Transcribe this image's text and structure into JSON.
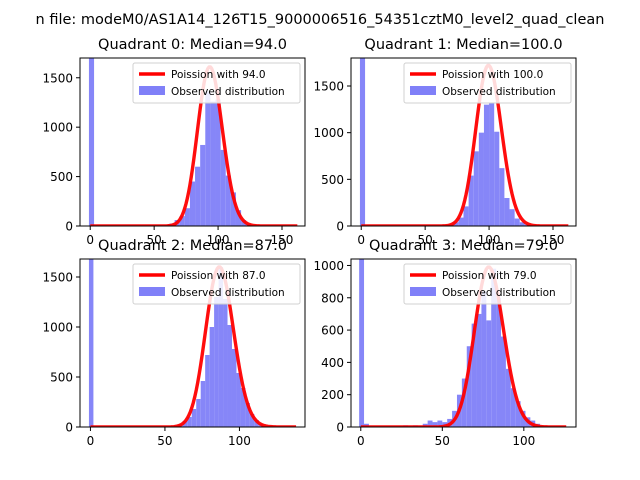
{
  "suptitle": "n file: modeM0/AS1A14_126T15_9000006516_54351cztM0_level2_quad_clean",
  "colors": {
    "poisson": "#ff0000",
    "observed": "#8080f8"
  },
  "chart_data": [
    {
      "type": "bar",
      "title": "Quadrant 0: Median=94.0",
      "median": 94.0,
      "xlim": [
        -8,
        168
      ],
      "ylim": [
        0,
        1700
      ],
      "xticks": [
        0,
        50,
        100,
        150
      ],
      "yticks": [
        0,
        500,
        1000,
        1500
      ],
      "x_tick_labels_visible": true,
      "legend": [
        "Poission with 94.0",
        "Observed distribution"
      ],
      "poisson_label": "Poission with 94.0",
      "observed_label": "Observed distribution",
      "poisson_peak": 1610,
      "bins": [
        {
          "x0": -1,
          "x1": 3,
          "count": 1700
        },
        {
          "x0": 50,
          "x1": 54,
          "count": 5
        },
        {
          "x0": 54,
          "x1": 58,
          "count": 5
        },
        {
          "x0": 58,
          "x1": 62,
          "count": 10
        },
        {
          "x0": 62,
          "x1": 66,
          "count": 25
        },
        {
          "x0": 66,
          "x1": 70,
          "count": 60
        },
        {
          "x0": 70,
          "x1": 74,
          "count": 100
        },
        {
          "x0": 74,
          "x1": 78,
          "count": 180
        },
        {
          "x0": 78,
          "x1": 82,
          "count": 450
        },
        {
          "x0": 82,
          "x1": 86,
          "count": 600
        },
        {
          "x0": 86,
          "x1": 90,
          "count": 820
        },
        {
          "x0": 90,
          "x1": 94,
          "count": 1360
        },
        {
          "x0": 94,
          "x1": 98,
          "count": 1260
        },
        {
          "x0": 98,
          "x1": 102,
          "count": 1280
        },
        {
          "x0": 102,
          "x1": 106,
          "count": 770
        },
        {
          "x0": 106,
          "x1": 110,
          "count": 510
        },
        {
          "x0": 110,
          "x1": 114,
          "count": 340
        },
        {
          "x0": 114,
          "x1": 118,
          "count": 160
        },
        {
          "x0": 118,
          "x1": 122,
          "count": 60
        },
        {
          "x0": 122,
          "x1": 126,
          "count": 20
        },
        {
          "x0": 126,
          "x1": 130,
          "count": 5
        }
      ]
    },
    {
      "type": "bar",
      "title": "Quadrant 1: Median=100.0",
      "median": 100.0,
      "xlim": [
        -8,
        168
      ],
      "ylim": [
        0,
        1800
      ],
      "xticks": [
        0,
        50,
        100,
        150
      ],
      "yticks": [
        0,
        500,
        1000,
        1500
      ],
      "x_tick_labels_visible": true,
      "legend": [
        "Poission with 100.0",
        "Observed distribution"
      ],
      "poisson_label": "Poission with 100.0",
      "observed_label": "Observed distribution",
      "poisson_peak": 1720,
      "bins": [
        {
          "x0": -1,
          "x1": 3,
          "count": 1800
        },
        {
          "x0": 60,
          "x1": 64,
          "count": 5
        },
        {
          "x0": 64,
          "x1": 68,
          "count": 10
        },
        {
          "x0": 68,
          "x1": 72,
          "count": 20
        },
        {
          "x0": 72,
          "x1": 76,
          "count": 40
        },
        {
          "x0": 76,
          "x1": 80,
          "count": 90
        },
        {
          "x0": 80,
          "x1": 84,
          "count": 210
        },
        {
          "x0": 84,
          "x1": 88,
          "count": 540
        },
        {
          "x0": 88,
          "x1": 92,
          "count": 800
        },
        {
          "x0": 92,
          "x1": 96,
          "count": 1000
        },
        {
          "x0": 96,
          "x1": 100,
          "count": 1300
        },
        {
          "x0": 100,
          "x1": 104,
          "count": 1320
        },
        {
          "x0": 104,
          "x1": 108,
          "count": 1010
        },
        {
          "x0": 108,
          "x1": 112,
          "count": 620
        },
        {
          "x0": 112,
          "x1": 116,
          "count": 300
        },
        {
          "x0": 116,
          "x1": 120,
          "count": 180
        },
        {
          "x0": 120,
          "x1": 124,
          "count": 80
        },
        {
          "x0": 124,
          "x1": 128,
          "count": 40
        },
        {
          "x0": 128,
          "x1": 132,
          "count": 15
        }
      ]
    },
    {
      "type": "bar",
      "title": "Quadrant 2: Median=87.0",
      "median": 87.0,
      "xlim": [
        -7,
        144
      ],
      "ylim": [
        0,
        1680
      ],
      "xticks": [
        0,
        50,
        100
      ],
      "yticks": [
        0,
        500,
        1000,
        1500
      ],
      "x_tick_labels_visible": true,
      "legend": [
        "Poission with 87.0",
        "Observed distribution"
      ],
      "poisson_label": "Poission with 87.0",
      "observed_label": "Observed distribution",
      "poisson_peak": 1600,
      "bins": [
        {
          "x0": -1,
          "x1": 2,
          "count": 1680
        },
        {
          "x0": 56,
          "x1": 59,
          "count": 15
        },
        {
          "x0": 59,
          "x1": 62,
          "count": 30
        },
        {
          "x0": 62,
          "x1": 65,
          "count": 60
        },
        {
          "x0": 65,
          "x1": 68,
          "count": 100
        },
        {
          "x0": 68,
          "x1": 71,
          "count": 180
        },
        {
          "x0": 71,
          "x1": 74,
          "count": 280
        },
        {
          "x0": 74,
          "x1": 77,
          "count": 460
        },
        {
          "x0": 77,
          "x1": 80,
          "count": 720
        },
        {
          "x0": 80,
          "x1": 83,
          "count": 1000
        },
        {
          "x0": 83,
          "x1": 86,
          "count": 1300
        },
        {
          "x0": 86,
          "x1": 89,
          "count": 1600
        },
        {
          "x0": 89,
          "x1": 92,
          "count": 1280
        },
        {
          "x0": 92,
          "x1": 95,
          "count": 1020
        },
        {
          "x0": 95,
          "x1": 98,
          "count": 780
        },
        {
          "x0": 98,
          "x1": 101,
          "count": 540
        },
        {
          "x0": 101,
          "x1": 104,
          "count": 390
        },
        {
          "x0": 104,
          "x1": 107,
          "count": 240
        },
        {
          "x0": 107,
          "x1": 110,
          "count": 130
        },
        {
          "x0": 110,
          "x1": 113,
          "count": 70
        },
        {
          "x0": 113,
          "x1": 116,
          "count": 30
        }
      ]
    },
    {
      "type": "bar",
      "title": "Quadrant 3: Median=79.0",
      "median": 79.0,
      "xlim": [
        -6,
        132
      ],
      "ylim": [
        0,
        1040
      ],
      "xticks": [
        0,
        50,
        100
      ],
      "yticks": [
        0,
        200,
        400,
        600,
        800,
        1000
      ],
      "x_tick_labels_visible": true,
      "legend": [
        "Poission with 79.0",
        "Observed distribution"
      ],
      "poisson_label": "Poission with 79.0",
      "observed_label": "Observed distribution",
      "poisson_peak": 990,
      "bins": [
        {
          "x0": -1,
          "x1": 2,
          "count": 1040
        },
        {
          "x0": 2,
          "x1": 5,
          "count": 20
        },
        {
          "x0": 26,
          "x1": 29,
          "count": 10
        },
        {
          "x0": 32,
          "x1": 35,
          "count": 10
        },
        {
          "x0": 38,
          "x1": 41,
          "count": 20
        },
        {
          "x0": 41,
          "x1": 44,
          "count": 40
        },
        {
          "x0": 44,
          "x1": 47,
          "count": 30
        },
        {
          "x0": 47,
          "x1": 50,
          "count": 40
        },
        {
          "x0": 50,
          "x1": 53,
          "count": 30
        },
        {
          "x0": 53,
          "x1": 56,
          "count": 50
        },
        {
          "x0": 56,
          "x1": 59,
          "count": 100
        },
        {
          "x0": 59,
          "x1": 62,
          "count": 200
        },
        {
          "x0": 62,
          "x1": 65,
          "count": 300
        },
        {
          "x0": 65,
          "x1": 68,
          "count": 500
        },
        {
          "x0": 68,
          "x1": 71,
          "count": 640
        },
        {
          "x0": 71,
          "x1": 74,
          "count": 700
        },
        {
          "x0": 74,
          "x1": 77,
          "count": 840
        },
        {
          "x0": 77,
          "x1": 80,
          "count": 660
        },
        {
          "x0": 80,
          "x1": 83,
          "count": 980
        },
        {
          "x0": 83,
          "x1": 86,
          "count": 800
        },
        {
          "x0": 86,
          "x1": 89,
          "count": 560
        },
        {
          "x0": 89,
          "x1": 92,
          "count": 360
        },
        {
          "x0": 92,
          "x1": 95,
          "count": 240
        },
        {
          "x0": 95,
          "x1": 98,
          "count": 160
        },
        {
          "x0": 98,
          "x1": 101,
          "count": 100
        },
        {
          "x0": 101,
          "x1": 104,
          "count": 60
        },
        {
          "x0": 104,
          "x1": 107,
          "count": 40
        },
        {
          "x0": 107,
          "x1": 110,
          "count": 20
        }
      ]
    }
  ]
}
